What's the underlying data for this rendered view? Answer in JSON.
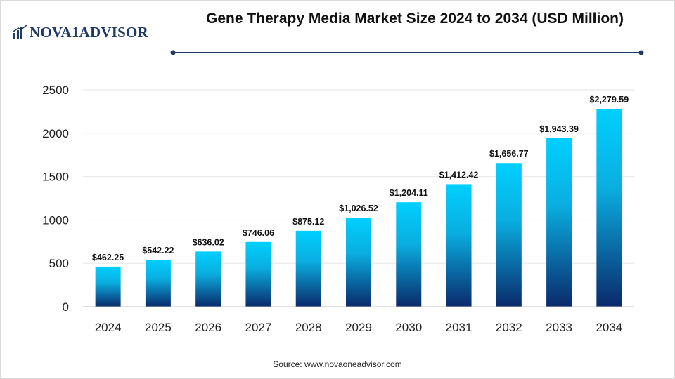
{
  "brand": {
    "logo_text": "NOVA1ADVISOR"
  },
  "header": {
    "title": "Gene Therapy Media Market Size 2024 to 2034 (USD Million)"
  },
  "footer": {
    "source": "Source: www.novaoneadvisor.com"
  },
  "colors": {
    "bar_top": "#00d0ff",
    "bar_bottom": "#0a2a6b",
    "rule": "#1f3a63",
    "grid": "#e6e6e6"
  },
  "chart_data": {
    "type": "bar",
    "title": "Gene Therapy Media Market Size 2024 to 2034 (USD Million)",
    "xlabel": "",
    "ylabel": "",
    "categories": [
      "2024",
      "2025",
      "2026",
      "2027",
      "2028",
      "2029",
      "2030",
      "2031",
      "2032",
      "2033",
      "2034"
    ],
    "values": [
      462.25,
      542.22,
      636.02,
      746.06,
      875.12,
      1026.52,
      1204.11,
      1412.42,
      1656.77,
      1943.39,
      2279.59
    ],
    "data_labels": [
      "$462.25",
      "$542.22",
      "$636.02",
      "$746.06",
      "$875.12",
      "$1,026.52",
      "$1,204.11",
      "$1,412.42",
      "$1,656.77",
      "$1,943.39",
      "$2,279.59"
    ],
    "yticks": [
      0,
      500,
      1000,
      1500,
      2000,
      2500
    ],
    "ylim": [
      0,
      2500
    ],
    "grid": true,
    "legend": "none"
  }
}
